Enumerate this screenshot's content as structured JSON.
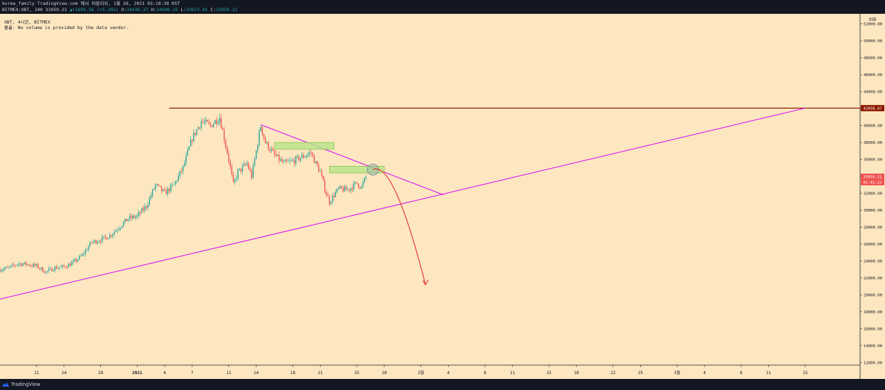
{
  "header": {
    "line1": "korea_family TradingView.com 에서 퍼블리쉬, 1월 26, 2021 03:18:38 KST",
    "symbol": "BITMEX:XBT, 240",
    "last": "33959.21",
    "change_arrow": "▲",
    "change": "+1695.56 (+5.26%)",
    "o_label": "O:",
    "o_val": "34436.37",
    "h_label": "H:",
    "h_val": "34600.25",
    "l_label": "L:",
    "l_val": "33623.81",
    "c_label": "C:",
    "c_val": "33959.21"
  },
  "legend": {
    "line1": "XBT, 4시간, BITMEX",
    "line2": "볼륨: No volume is provided by the data vendor."
  },
  "footer": {
    "brand": "TradingView"
  },
  "colors": {
    "background": "#fde7c0",
    "up": "#26a69a",
    "down": "#ef5350",
    "trendline": "#d500f9",
    "resistance": "#8b1a00",
    "zone_fill": "#b6e58a",
    "zone_stroke": "#7dbf47",
    "projection": "#e53935",
    "price_badge": "#ef5350"
  },
  "chart_data": {
    "type": "candlestick",
    "y_axis": {
      "unit": "USD",
      "ticks": [
        12000,
        14000,
        16000,
        18000,
        20000,
        22000,
        24000,
        26000,
        28000,
        30000,
        32000,
        34000,
        36000,
        38000,
        40000,
        42000,
        44000,
        46000,
        48000,
        50000,
        52000
      ],
      "tick_labels": [
        "12000.00",
        "14000.00",
        "16000.00",
        "18000.00",
        "20000.00",
        "22000.00",
        "24000.00",
        "26000.00",
        "28000.00",
        "30000.00",
        "32000.00",
        "34000.00",
        "36000.00",
        "38000.00",
        "40000.00",
        "42000.00",
        "44000.00",
        "46000.00",
        "48000.00",
        "50000.00",
        "52000.00"
      ],
      "range": [
        11700,
        53200
      ]
    },
    "x_axis": {
      "labels": [
        {
          "text": "21",
          "date": "2020-12-21",
          "bold": false
        },
        {
          "text": "24",
          "date": "2020-12-24",
          "bold": false
        },
        {
          "text": "28",
          "date": "2020-12-28",
          "bold": false
        },
        {
          "text": "2021",
          "date": "2021-01-01",
          "bold": true
        },
        {
          "text": "4",
          "date": "2021-01-04",
          "bold": false
        },
        {
          "text": "7",
          "date": "2021-01-07",
          "bold": false
        },
        {
          "text": "11",
          "date": "2021-01-11",
          "bold": false
        },
        {
          "text": "14",
          "date": "2021-01-14",
          "bold": false
        },
        {
          "text": "18",
          "date": "2021-01-18",
          "bold": false
        },
        {
          "text": "21",
          "date": "2021-01-21",
          "bold": false
        },
        {
          "text": "25",
          "date": "2021-01-25",
          "bold": false
        },
        {
          "text": "28",
          "date": "2021-01-28",
          "bold": false
        },
        {
          "text": "2월",
          "date": "2021-02-01",
          "bold": false
        },
        {
          "text": "4",
          "date": "2021-02-04",
          "bold": false
        },
        {
          "text": "8",
          "date": "2021-02-08",
          "bold": false
        },
        {
          "text": "11",
          "date": "2021-02-11",
          "bold": false
        },
        {
          "text": "15",
          "date": "2021-02-15",
          "bold": false
        },
        {
          "text": "18",
          "date": "2021-02-18",
          "bold": false
        },
        {
          "text": "22",
          "date": "2021-02-22",
          "bold": false
        },
        {
          "text": "25",
          "date": "2021-02-25",
          "bold": false
        },
        {
          "text": "3월",
          "date": "2021-03-01",
          "bold": false
        },
        {
          "text": "4",
          "date": "2021-03-04",
          "bold": false
        },
        {
          "text": "8",
          "date": "2021-03-08",
          "bold": false
        },
        {
          "text": "11",
          "date": "2021-03-11",
          "bold": false
        },
        {
          "text": "15",
          "date": "2021-03-15",
          "bold": false
        }
      ],
      "range": [
        "2020-12-17",
        "2021-03-21"
      ]
    },
    "price_path": [
      [
        "2020-12-17T00:00",
        23000
      ],
      [
        "2020-12-18T00:00",
        23200
      ],
      [
        "2020-12-19T00:00",
        23700
      ],
      [
        "2020-12-20T00:00",
        23600
      ],
      [
        "2020-12-21T00:00",
        23400
      ],
      [
        "2020-12-22T00:00",
        22700
      ],
      [
        "2020-12-23T00:00",
        23200
      ],
      [
        "2020-12-24T00:00",
        23300
      ],
      [
        "2020-12-25T00:00",
        23800
      ],
      [
        "2020-12-26T00:00",
        24700
      ],
      [
        "2020-12-27T00:00",
        26200
      ],
      [
        "2020-12-28T00:00",
        26500
      ],
      [
        "2020-12-29T00:00",
        27000
      ],
      [
        "2020-12-30T00:00",
        28000
      ],
      [
        "2020-12-31T00:00",
        29000
      ],
      [
        "2021-01-01T00:00",
        29300
      ],
      [
        "2021-01-02T00:00",
        30500
      ],
      [
        "2021-01-03T00:00",
        33000
      ],
      [
        "2021-01-04T00:00",
        32000
      ],
      [
        "2021-01-05T00:00",
        33000
      ],
      [
        "2021-01-06T00:00",
        35000
      ],
      [
        "2021-01-07T00:00",
        38500
      ],
      [
        "2021-01-08T00:00",
        40500
      ],
      [
        "2021-01-09T00:00",
        40000
      ],
      [
        "2021-01-10T00:00",
        41000
      ],
      [
        "2021-01-10T12:00",
        38500
      ],
      [
        "2021-01-11T00:00",
        36000
      ],
      [
        "2021-01-11T12:00",
        33000
      ],
      [
        "2021-01-12T00:00",
        34500
      ],
      [
        "2021-01-13T00:00",
        35500
      ],
      [
        "2021-01-13T12:00",
        34000
      ],
      [
        "2021-01-14T00:00",
        37000
      ],
      [
        "2021-01-14T12:00",
        40000
      ],
      [
        "2021-01-15T00:00",
        38000
      ],
      [
        "2021-01-16T00:00",
        36500
      ],
      [
        "2021-01-17T00:00",
        35500
      ],
      [
        "2021-01-18T00:00",
        35800
      ],
      [
        "2021-01-19T00:00",
        36300
      ],
      [
        "2021-01-20T00:00",
        36800
      ],
      [
        "2021-01-20T12:00",
        35500
      ],
      [
        "2021-01-21T00:00",
        34500
      ],
      [
        "2021-01-21T12:00",
        32500
      ],
      [
        "2021-01-22T00:00",
        31000
      ],
      [
        "2021-01-22T12:00",
        31800
      ],
      [
        "2021-01-23T00:00",
        32500
      ],
      [
        "2021-01-24T00:00",
        32400
      ],
      [
        "2021-01-25T00:00",
        33200
      ],
      [
        "2021-01-25T12:00",
        32700
      ],
      [
        "2021-01-26T00:00",
        33959
      ]
    ],
    "resistance_level": {
      "value": 42058.47,
      "label": "42058.47",
      "from": "2021-01-04T12:00"
    },
    "lower_trendline": {
      "from": [
        "2020-12-17T00:00",
        19500
      ],
      "to": [
        "2021-03-15T00:00",
        42058
      ]
    },
    "upper_trendline": {
      "from": [
        "2021-01-14T12:00",
        40100
      ],
      "to": [
        "2021-02-03T12:00",
        31800
      ]
    },
    "zones": [
      {
        "x1": "2021-01-16T00:00",
        "x2": "2021-01-22T12:00",
        "y1": 37200,
        "y2": 38000
      },
      {
        "x1": "2021-01-22T00:00",
        "x2": "2021-01-28T00:00",
        "y1": 34400,
        "y2": 35200
      }
    ],
    "highlight_circle": {
      "center": [
        "2021-01-26T18:00",
        34800
      ]
    },
    "projection": {
      "start": [
        "2021-01-26T18:00",
        34800
      ],
      "control": [
        "2021-01-29T00:00",
        36000
      ],
      "end": [
        "2021-02-01T12:00",
        21200
      ]
    },
    "last_price": {
      "value": 33959.21,
      "label": "33959.21",
      "countdown": "01:41:22"
    }
  }
}
